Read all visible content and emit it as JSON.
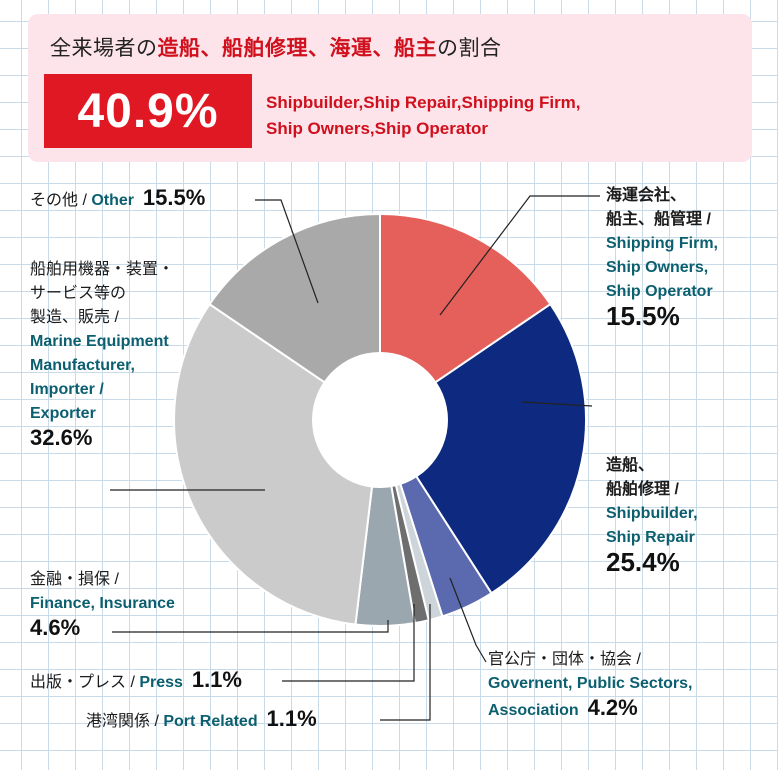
{
  "banner": {
    "title_prefix": "全来場者の",
    "title_highlight": "造船、船舶修理、海運、船主",
    "title_suffix": "の割合",
    "total_pct": "40.9%",
    "en_line1": "Shipbuilder,Ship Repair,Shipping Firm,",
    "en_line2": "Ship Owners,Ship Operator"
  },
  "labels": {
    "other": {
      "jp": "その他 / ",
      "en": "Other",
      "pct": "15.5%"
    },
    "marine": {
      "jp1": "船舶用機器・装置・",
      "jp2": "サービス等の",
      "jp3": "製造、販売 /",
      "en1": "Marine Equipment",
      "en2": "Manufacturer,",
      "en3": "Importer /",
      "en4": "Exporter",
      "pct": "32.6%"
    },
    "finance": {
      "jp": "金融・損保 /",
      "en": "Finance, Insurance",
      "pct": "4.6%"
    },
    "press": {
      "jp": "出版・プレス / ",
      "en": "Press",
      "pct": "1.1%"
    },
    "port": {
      "jp": "港湾関係 / ",
      "en": "Port Related",
      "pct": "1.1%"
    },
    "gov": {
      "jp": "官公庁・団体・協会 /",
      "en1": "Governent, Public Sectors,",
      "en2": "Association",
      "pct": "4.2%"
    },
    "shipping": {
      "jp1": "海運会社、",
      "jp2": "船主、船管理 /",
      "en1": "Shipping Firm,",
      "en2": "Ship Owners,",
      "en3": "Ship Operator",
      "pct": "15.5%"
    },
    "shipbuilder": {
      "jp1": "造船、",
      "jp2": "船舶修理 /",
      "en1": "Shipbuilder,",
      "en2": "Ship Repair",
      "pct": "25.4%"
    }
  },
  "chart_data": {
    "type": "pie",
    "donut": true,
    "start": "12 o'clock, clockwise",
    "slices": [
      {
        "name": "海運会社、船主、船管理 / Shipping Firm, Ship Owners, Ship Operator",
        "value": 15.5,
        "color": "#e5605a"
      },
      {
        "name": "造船、船舶修理 / Shipbuilder, Ship Repair",
        "value": 25.4,
        "color": "#0d2a80"
      },
      {
        "name": "官公庁・団体・協会 / Governent, Public Sectors, Association",
        "value": 4.2,
        "color": "#5b6aae"
      },
      {
        "name": "港湾関係 / Port Related",
        "value": 1.1,
        "color": "#cdd5db"
      },
      {
        "name": "出版・プレス / Press",
        "value": 1.1,
        "color": "#6e6e6e"
      },
      {
        "name": "金融・損保 / Finance, Insurance",
        "value": 4.6,
        "color": "#9aa7ae"
      },
      {
        "name": "船舶用機器・装置・サービス等の製造、販売 / Marine Equipment Manufacturer, Importer / Exporter",
        "value": 32.6,
        "color": "#cbcbcb"
      },
      {
        "name": "その他 / Other",
        "value": 15.5,
        "color": "#a9a9a9"
      }
    ]
  }
}
